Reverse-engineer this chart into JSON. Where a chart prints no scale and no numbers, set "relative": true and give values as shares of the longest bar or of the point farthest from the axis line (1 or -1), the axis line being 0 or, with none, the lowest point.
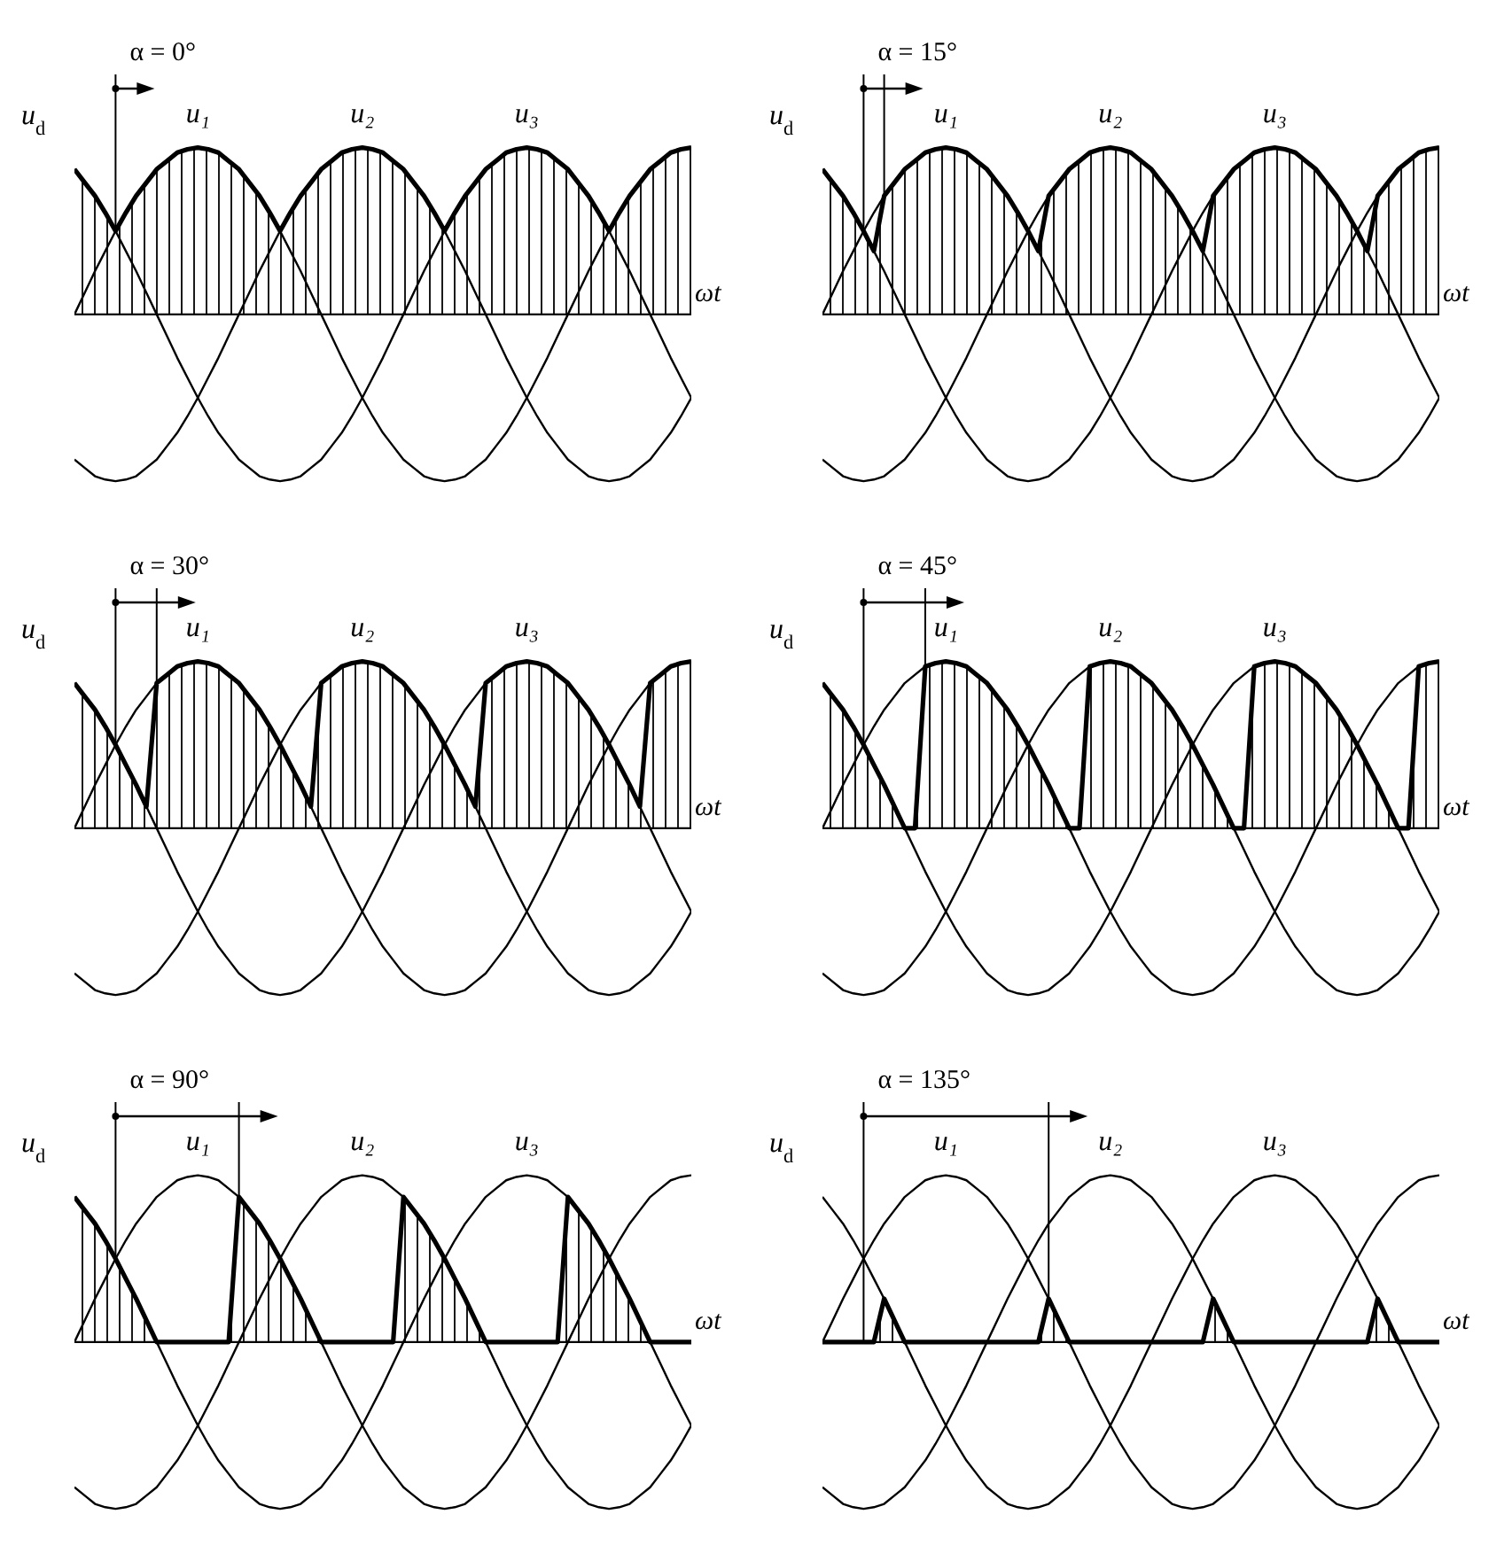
{
  "chart_data": [
    {
      "type": "line",
      "title": "α = 0°",
      "xlabel": "ωt",
      "ylabel": "u$_{d}$",
      "relative": true,
      "annotations": [
        "u₁",
        "u₂",
        "u₃"
      ],
      "categories": [
        null,
        null,
        null,
        null,
        null,
        null,
        null,
        null,
        null,
        null,
        null,
        null,
        null,
        null,
        null,
        null,
        null,
        null,
        null,
        null,
        null,
        null,
        null,
        null,
        null,
        null,
        null,
        null,
        null,
        null,
        null,
        null,
        null,
        null,
        null,
        null,
        null,
        null,
        null,
        null,
        null,
        null,
        null,
        null,
        null,
        null,
        null,
        null,
        null,
        null,
        null,
        null,
        null,
        null,
        null,
        null,
        null,
        null,
        null,
        null,
        null
      ],
      "series": [
        {
          "type": "line",
          "color": "#000000",
          "values": [
            0,
            0.13,
            0.26,
            0.38,
            0.5,
            0.61,
            0.71,
            0.79,
            0.87,
            0.92,
            0.97,
            0.99,
            1,
            0.99,
            0.97,
            0.92,
            0.87,
            0.79,
            0.71,
            0.61,
            0.5,
            0.38,
            0.26,
            0.13,
            0,
            -0.13,
            -0.26,
            -0.38,
            -0.5,
            -0.61,
            -0.71,
            -0.79,
            -0.87,
            -0.92,
            -0.97,
            -0.99,
            -1,
            -0.99,
            -0.97,
            -0.92,
            -0.87,
            -0.79,
            -0.71,
            -0.61,
            -0.5,
            -0.38,
            -0.26,
            -0.13,
            0,
            0.13,
            0.26,
            0.38,
            0.5,
            0.61,
            0.71,
            0.79,
            0.87,
            0.92,
            0.97,
            0.99,
            1
          ]
        },
        {
          "type": "line",
          "color": "#000000",
          "values": [
            -0.87,
            -0.92,
            -0.97,
            -0.99,
            -1,
            -0.99,
            -0.97,
            -0.92,
            -0.87,
            -0.79,
            -0.71,
            -0.61,
            -0.5,
            -0.38,
            -0.26,
            -0.13,
            0,
            0.13,
            0.26,
            0.38,
            0.5,
            0.61,
            0.71,
            0.79,
            0.87,
            0.92,
            0.97,
            0.99,
            1,
            0.99,
            0.97,
            0.92,
            0.87,
            0.79,
            0.71,
            0.61,
            0.5,
            0.38,
            0.26,
            0.13,
            0,
            -0.13,
            -0.26,
            -0.38,
            -0.5,
            -0.61,
            -0.71,
            -0.79,
            -0.87,
            -0.92,
            -0.97,
            -0.99,
            -1,
            -0.99,
            -0.97,
            -0.92,
            -0.87,
            -0.79,
            -0.71,
            -0.61,
            -0.5
          ]
        },
        {
          "type": "line",
          "color": "#000000",
          "values": [
            0.87,
            0.79,
            0.71,
            0.61,
            0.5,
            0.38,
            0.26,
            0.13,
            0,
            -0.13,
            -0.26,
            -0.38,
            -0.5,
            -0.61,
            -0.71,
            -0.79,
            -0.87,
            -0.92,
            -0.97,
            -0.99,
            -1,
            -0.99,
            -0.97,
            -0.92,
            -0.87,
            -0.79,
            -0.71,
            -0.61,
            -0.5,
            -0.38,
            -0.26,
            -0.13,
            0,
            0.13,
            0.26,
            0.38,
            0.5,
            0.61,
            0.71,
            0.79,
            0.87,
            0.92,
            0.97,
            0.99,
            1,
            0.99,
            0.97,
            0.92,
            0.87,
            0.79,
            0.71,
            0.61,
            0.5,
            0.38,
            0.26,
            0.13,
            0,
            -0.13,
            -0.26,
            -0.38,
            -0.5
          ]
        },
        {
          "type": "area",
          "color": "#000000",
          "values": [
            0.87,
            0.79,
            0.71,
            0.61,
            0.5,
            0.61,
            0.71,
            0.79,
            0.87,
            0.92,
            0.97,
            0.99,
            1,
            0.99,
            0.97,
            0.92,
            0.87,
            0.79,
            0.71,
            0.61,
            0.5,
            0.61,
            0.71,
            0.79,
            0.87,
            0.92,
            0.97,
            0.99,
            1,
            0.99,
            0.97,
            0.92,
            0.87,
            0.79,
            0.71,
            0.61,
            0.5,
            0.61,
            0.71,
            0.79,
            0.87,
            0.92,
            0.97,
            0.99,
            1,
            0.99,
            0.97,
            0.92,
            0.87,
            0.79,
            0.71,
            0.61,
            0.5,
            0.61,
            0.71,
            0.79,
            0.87,
            0.92,
            0.97,
            0.99,
            1
          ]
        }
      ]
    },
    {
      "type": "line",
      "title": "α = 15°",
      "xlabel": "ωt",
      "ylabel": "u$_{d}$",
      "relative": true,
      "annotations": [
        "u₁",
        "u₂",
        "u₃"
      ],
      "categories": [
        null,
        null,
        null,
        null,
        null,
        null,
        null,
        null,
        null,
        null,
        null,
        null,
        null,
        null,
        null,
        null,
        null,
        null,
        null,
        null,
        null,
        null,
        null,
        null,
        null,
        null,
        null,
        null,
        null,
        null,
        null,
        null,
        null,
        null,
        null,
        null,
        null,
        null,
        null,
        null,
        null,
        null,
        null,
        null,
        null,
        null,
        null,
        null,
        null,
        null,
        null,
        null,
        null,
        null,
        null,
        null,
        null,
        null,
        null,
        null,
        null
      ],
      "series": [
        {
          "type": "line",
          "color": "#000000",
          "values": [
            0,
            0.13,
            0.26,
            0.38,
            0.5,
            0.61,
            0.71,
            0.79,
            0.87,
            0.92,
            0.97,
            0.99,
            1,
            0.99,
            0.97,
            0.92,
            0.87,
            0.79,
            0.71,
            0.61,
            0.5,
            0.38,
            0.26,
            0.13,
            0,
            -0.13,
            -0.26,
            -0.38,
            -0.5,
            -0.61,
            -0.71,
            -0.79,
            -0.87,
            -0.92,
            -0.97,
            -0.99,
            -1,
            -0.99,
            -0.97,
            -0.92,
            -0.87,
            -0.79,
            -0.71,
            -0.61,
            -0.5,
            -0.38,
            -0.26,
            -0.13,
            0,
            0.13,
            0.26,
            0.38,
            0.5,
            0.61,
            0.71,
            0.79,
            0.87,
            0.92,
            0.97,
            0.99,
            1
          ]
        },
        {
          "type": "line",
          "color": "#000000",
          "values": [
            -0.87,
            -0.92,
            -0.97,
            -0.99,
            -1,
            -0.99,
            -0.97,
            -0.92,
            -0.87,
            -0.79,
            -0.71,
            -0.61,
            -0.5,
            -0.38,
            -0.26,
            -0.13,
            0,
            0.13,
            0.26,
            0.38,
            0.5,
            0.61,
            0.71,
            0.79,
            0.87,
            0.92,
            0.97,
            0.99,
            1,
            0.99,
            0.97,
            0.92,
            0.87,
            0.79,
            0.71,
            0.61,
            0.5,
            0.38,
            0.26,
            0.13,
            0,
            -0.13,
            -0.26,
            -0.38,
            -0.5,
            -0.61,
            -0.71,
            -0.79,
            -0.87,
            -0.92,
            -0.97,
            -0.99,
            -1,
            -0.99,
            -0.97,
            -0.92,
            -0.87,
            -0.79,
            -0.71,
            -0.61,
            -0.5
          ]
        },
        {
          "type": "line",
          "color": "#000000",
          "values": [
            0.87,
            0.79,
            0.71,
            0.61,
            0.5,
            0.38,
            0.26,
            0.13,
            0,
            -0.13,
            -0.26,
            -0.38,
            -0.5,
            -0.61,
            -0.71,
            -0.79,
            -0.87,
            -0.92,
            -0.97,
            -0.99,
            -1,
            -0.99,
            -0.97,
            -0.92,
            -0.87,
            -0.79,
            -0.71,
            -0.61,
            -0.5,
            -0.38,
            -0.26,
            -0.13,
            0,
            0.13,
            0.26,
            0.38,
            0.5,
            0.61,
            0.71,
            0.79,
            0.87,
            0.92,
            0.97,
            0.99,
            1,
            0.99,
            0.97,
            0.92,
            0.87,
            0.79,
            0.71,
            0.61,
            0.5,
            0.38,
            0.26,
            0.13,
            0,
            -0.13,
            -0.26,
            -0.38,
            -0.5
          ]
        },
        {
          "type": "area",
          "color": "#000000",
          "values": [
            0.87,
            0.79,
            0.71,
            0.61,
            0.5,
            0.38,
            0.71,
            0.79,
            0.87,
            0.92,
            0.97,
            0.99,
            1,
            0.99,
            0.97,
            0.92,
            0.87,
            0.79,
            0.71,
            0.61,
            0.5,
            0.38,
            0.71,
            0.79,
            0.87,
            0.92,
            0.97,
            0.99,
            1,
            0.99,
            0.97,
            0.92,
            0.87,
            0.79,
            0.71,
            0.61,
            0.5,
            0.38,
            0.71,
            0.79,
            0.87,
            0.92,
            0.97,
            0.99,
            1,
            0.99,
            0.97,
            0.92,
            0.87,
            0.79,
            0.71,
            0.61,
            0.5,
            0.38,
            0.71,
            0.79,
            0.87,
            0.92,
            0.97,
            0.99,
            1
          ]
        }
      ]
    },
    {
      "type": "line",
      "title": "α = 30°",
      "xlabel": "ωt",
      "ylabel": "u$_{d}$",
      "relative": true,
      "annotations": [
        "u₁",
        "u₂",
        "u₃"
      ],
      "categories": [
        null,
        null,
        null,
        null,
        null,
        null,
        null,
        null,
        null,
        null,
        null,
        null,
        null,
        null,
        null,
        null,
        null,
        null,
        null,
        null,
        null,
        null,
        null,
        null,
        null,
        null,
        null,
        null,
        null,
        null,
        null,
        null,
        null,
        null,
        null,
        null,
        null,
        null,
        null,
        null,
        null,
        null,
        null,
        null,
        null,
        null,
        null,
        null,
        null,
        null,
        null,
        null,
        null,
        null,
        null,
        null,
        null,
        null,
        null,
        null,
        null
      ],
      "series": [
        {
          "type": "line",
          "color": "#000000",
          "values": [
            0,
            0.13,
            0.26,
            0.38,
            0.5,
            0.61,
            0.71,
            0.79,
            0.87,
            0.92,
            0.97,
            0.99,
            1,
            0.99,
            0.97,
            0.92,
            0.87,
            0.79,
            0.71,
            0.61,
            0.5,
            0.38,
            0.26,
            0.13,
            0,
            -0.13,
            -0.26,
            -0.38,
            -0.5,
            -0.61,
            -0.71,
            -0.79,
            -0.87,
            -0.92,
            -0.97,
            -0.99,
            -1,
            -0.99,
            -0.97,
            -0.92,
            -0.87,
            -0.79,
            -0.71,
            -0.61,
            -0.5,
            -0.38,
            -0.26,
            -0.13,
            0,
            0.13,
            0.26,
            0.38,
            0.5,
            0.61,
            0.71,
            0.79,
            0.87,
            0.92,
            0.97,
            0.99,
            1
          ]
        },
        {
          "type": "line",
          "color": "#000000",
          "values": [
            -0.87,
            -0.92,
            -0.97,
            -0.99,
            -1,
            -0.99,
            -0.97,
            -0.92,
            -0.87,
            -0.79,
            -0.71,
            -0.61,
            -0.5,
            -0.38,
            -0.26,
            -0.13,
            0,
            0.13,
            0.26,
            0.38,
            0.5,
            0.61,
            0.71,
            0.79,
            0.87,
            0.92,
            0.97,
            0.99,
            1,
            0.99,
            0.97,
            0.92,
            0.87,
            0.79,
            0.71,
            0.61,
            0.5,
            0.38,
            0.26,
            0.13,
            0,
            -0.13,
            -0.26,
            -0.38,
            -0.5,
            -0.61,
            -0.71,
            -0.79,
            -0.87,
            -0.92,
            -0.97,
            -0.99,
            -1,
            -0.99,
            -0.97,
            -0.92,
            -0.87,
            -0.79,
            -0.71,
            -0.61,
            -0.5
          ]
        },
        {
          "type": "line",
          "color": "#000000",
          "values": [
            0.87,
            0.79,
            0.71,
            0.61,
            0.5,
            0.38,
            0.26,
            0.13,
            0,
            -0.13,
            -0.26,
            -0.38,
            -0.5,
            -0.61,
            -0.71,
            -0.79,
            -0.87,
            -0.92,
            -0.97,
            -0.99,
            -1,
            -0.99,
            -0.97,
            -0.92,
            -0.87,
            -0.79,
            -0.71,
            -0.61,
            -0.5,
            -0.38,
            -0.26,
            -0.13,
            0,
            0.13,
            0.26,
            0.38,
            0.5,
            0.61,
            0.71,
            0.79,
            0.87,
            0.92,
            0.97,
            0.99,
            1,
            0.99,
            0.97,
            0.92,
            0.87,
            0.79,
            0.71,
            0.61,
            0.5,
            0.38,
            0.26,
            0.13,
            0,
            -0.13,
            -0.26,
            -0.38,
            -0.5
          ]
        },
        {
          "type": "area",
          "color": "#000000",
          "values": [
            0.87,
            0.79,
            0.71,
            0.61,
            0.5,
            0.38,
            0.26,
            0.13,
            0.87,
            0.92,
            0.97,
            0.99,
            1,
            0.99,
            0.97,
            0.92,
            0.87,
            0.79,
            0.71,
            0.61,
            0.5,
            0.38,
            0.26,
            0.13,
            0.87,
            0.92,
            0.97,
            0.99,
            1,
            0.99,
            0.97,
            0.92,
            0.87,
            0.79,
            0.71,
            0.61,
            0.5,
            0.38,
            0.26,
            0.13,
            0.87,
            0.92,
            0.97,
            0.99,
            1,
            0.99,
            0.97,
            0.92,
            0.87,
            0.79,
            0.71,
            0.61,
            0.5,
            0.38,
            0.26,
            0.13,
            0.87,
            0.92,
            0.97,
            0.99,
            1
          ]
        }
      ]
    },
    {
      "type": "line",
      "title": "α = 45°",
      "xlabel": "ωt",
      "ylabel": "u$_{d}$",
      "relative": true,
      "annotations": [
        "u₁",
        "u₂",
        "u₃"
      ],
      "categories": [
        null,
        null,
        null,
        null,
        null,
        null,
        null,
        null,
        null,
        null,
        null,
        null,
        null,
        null,
        null,
        null,
        null,
        null,
        null,
        null,
        null,
        null,
        null,
        null,
        null,
        null,
        null,
        null,
        null,
        null,
        null,
        null,
        null,
        null,
        null,
        null,
        null,
        null,
        null,
        null,
        null,
        null,
        null,
        null,
        null,
        null,
        null,
        null,
        null,
        null,
        null,
        null,
        null,
        null,
        null,
        null,
        null,
        null,
        null,
        null,
        null
      ],
      "series": [
        {
          "type": "line",
          "color": "#000000",
          "values": [
            0,
            0.13,
            0.26,
            0.38,
            0.5,
            0.61,
            0.71,
            0.79,
            0.87,
            0.92,
            0.97,
            0.99,
            1,
            0.99,
            0.97,
            0.92,
            0.87,
            0.79,
            0.71,
            0.61,
            0.5,
            0.38,
            0.26,
            0.13,
            0,
            -0.13,
            -0.26,
            -0.38,
            -0.5,
            -0.61,
            -0.71,
            -0.79,
            -0.87,
            -0.92,
            -0.97,
            -0.99,
            -1,
            -0.99,
            -0.97,
            -0.92,
            -0.87,
            -0.79,
            -0.71,
            -0.61,
            -0.5,
            -0.38,
            -0.26,
            -0.13,
            0,
            0.13,
            0.26,
            0.38,
            0.5,
            0.61,
            0.71,
            0.79,
            0.87,
            0.92,
            0.97,
            0.99,
            1
          ]
        },
        {
          "type": "line",
          "color": "#000000",
          "values": [
            -0.87,
            -0.92,
            -0.97,
            -0.99,
            -1,
            -0.99,
            -0.97,
            -0.92,
            -0.87,
            -0.79,
            -0.71,
            -0.61,
            -0.5,
            -0.38,
            -0.26,
            -0.13,
            0,
            0.13,
            0.26,
            0.38,
            0.5,
            0.61,
            0.71,
            0.79,
            0.87,
            0.92,
            0.97,
            0.99,
            1,
            0.99,
            0.97,
            0.92,
            0.87,
            0.79,
            0.71,
            0.61,
            0.5,
            0.38,
            0.26,
            0.13,
            0,
            -0.13,
            -0.26,
            -0.38,
            -0.5,
            -0.61,
            -0.71,
            -0.79,
            -0.87,
            -0.92,
            -0.97,
            -0.99,
            -1,
            -0.99,
            -0.97,
            -0.92,
            -0.87,
            -0.79,
            -0.71,
            -0.61,
            -0.5
          ]
        },
        {
          "type": "line",
          "color": "#000000",
          "values": [
            0.87,
            0.79,
            0.71,
            0.61,
            0.5,
            0.38,
            0.26,
            0.13,
            0,
            -0.13,
            -0.26,
            -0.38,
            -0.5,
            -0.61,
            -0.71,
            -0.79,
            -0.87,
            -0.92,
            -0.97,
            -0.99,
            -1,
            -0.99,
            -0.97,
            -0.92,
            -0.87,
            -0.79,
            -0.71,
            -0.61,
            -0.5,
            -0.38,
            -0.26,
            -0.13,
            0,
            0.13,
            0.26,
            0.38,
            0.5,
            0.61,
            0.71,
            0.79,
            0.87,
            0.92,
            0.97,
            0.99,
            1,
            0.99,
            0.97,
            0.92,
            0.87,
            0.79,
            0.71,
            0.61,
            0.5,
            0.38,
            0.26,
            0.13,
            0,
            -0.13,
            -0.26,
            -0.38,
            -0.5
          ]
        },
        {
          "type": "area",
          "color": "#000000",
          "values": [
            0.87,
            0.79,
            0.71,
            0.61,
            0.5,
            0.38,
            0.26,
            0.13,
            0,
            0,
            0.97,
            0.99,
            1,
            0.99,
            0.97,
            0.92,
            0.87,
            0.79,
            0.71,
            0.61,
            0.5,
            0.38,
            0.26,
            0.13,
            0,
            0,
            0.97,
            0.99,
            1,
            0.99,
            0.97,
            0.92,
            0.87,
            0.79,
            0.71,
            0.61,
            0.5,
            0.38,
            0.26,
            0.13,
            0,
            0,
            0.97,
            0.99,
            1,
            0.99,
            0.97,
            0.92,
            0.87,
            0.79,
            0.71,
            0.61,
            0.5,
            0.38,
            0.26,
            0.13,
            0,
            0,
            0.97,
            0.99,
            1
          ]
        }
      ]
    },
    {
      "type": "line",
      "title": "α = 90°",
      "xlabel": "ωt",
      "ylabel": "u$_{d}$",
      "relative": true,
      "annotations": [
        "u₁",
        "u₂",
        "u₃"
      ],
      "categories": [
        null,
        null,
        null,
        null,
        null,
        null,
        null,
        null,
        null,
        null,
        null,
        null,
        null,
        null,
        null,
        null,
        null,
        null,
        null,
        null,
        null,
        null,
        null,
        null,
        null,
        null,
        null,
        null,
        null,
        null,
        null,
        null,
        null,
        null,
        null,
        null,
        null,
        null,
        null,
        null,
        null,
        null,
        null,
        null,
        null,
        null,
        null,
        null,
        null,
        null,
        null,
        null,
        null,
        null,
        null,
        null,
        null,
        null,
        null,
        null,
        null
      ],
      "series": [
        {
          "type": "line",
          "color": "#000000",
          "values": [
            0,
            0.13,
            0.26,
            0.38,
            0.5,
            0.61,
            0.71,
            0.79,
            0.87,
            0.92,
            0.97,
            0.99,
            1,
            0.99,
            0.97,
            0.92,
            0.87,
            0.79,
            0.71,
            0.61,
            0.5,
            0.38,
            0.26,
            0.13,
            0,
            -0.13,
            -0.26,
            -0.38,
            -0.5,
            -0.61,
            -0.71,
            -0.79,
            -0.87,
            -0.92,
            -0.97,
            -0.99,
            -1,
            -0.99,
            -0.97,
            -0.92,
            -0.87,
            -0.79,
            -0.71,
            -0.61,
            -0.5,
            -0.38,
            -0.26,
            -0.13,
            0,
            0.13,
            0.26,
            0.38,
            0.5,
            0.61,
            0.71,
            0.79,
            0.87,
            0.92,
            0.97,
            0.99,
            1
          ]
        },
        {
          "type": "line",
          "color": "#000000",
          "values": [
            -0.87,
            -0.92,
            -0.97,
            -0.99,
            -1,
            -0.99,
            -0.97,
            -0.92,
            -0.87,
            -0.79,
            -0.71,
            -0.61,
            -0.5,
            -0.38,
            -0.26,
            -0.13,
            0,
            0.13,
            0.26,
            0.38,
            0.5,
            0.61,
            0.71,
            0.79,
            0.87,
            0.92,
            0.97,
            0.99,
            1,
            0.99,
            0.97,
            0.92,
            0.87,
            0.79,
            0.71,
            0.61,
            0.5,
            0.38,
            0.26,
            0.13,
            0,
            -0.13,
            -0.26,
            -0.38,
            -0.5,
            -0.61,
            -0.71,
            -0.79,
            -0.87,
            -0.92,
            -0.97,
            -0.99,
            -1,
            -0.99,
            -0.97,
            -0.92,
            -0.87,
            -0.79,
            -0.71,
            -0.61,
            -0.5
          ]
        },
        {
          "type": "line",
          "color": "#000000",
          "values": [
            0.87,
            0.79,
            0.71,
            0.61,
            0.5,
            0.38,
            0.26,
            0.13,
            0,
            -0.13,
            -0.26,
            -0.38,
            -0.5,
            -0.61,
            -0.71,
            -0.79,
            -0.87,
            -0.92,
            -0.97,
            -0.99,
            -1,
            -0.99,
            -0.97,
            -0.92,
            -0.87,
            -0.79,
            -0.71,
            -0.61,
            -0.5,
            -0.38,
            -0.26,
            -0.13,
            0,
            0.13,
            0.26,
            0.38,
            0.5,
            0.61,
            0.71,
            0.79,
            0.87,
            0.92,
            0.97,
            0.99,
            1,
            0.99,
            0.97,
            0.92,
            0.87,
            0.79,
            0.71,
            0.61,
            0.5,
            0.38,
            0.26,
            0.13,
            0,
            -0.13,
            -0.26,
            -0.38,
            -0.5
          ]
        },
        {
          "type": "area",
          "color": "#000000",
          "values": [
            0.87,
            0.79,
            0.71,
            0.61,
            0.5,
            0.38,
            0.26,
            0.13,
            0,
            0,
            0,
            0,
            0,
            0,
            0,
            0,
            0.87,
            0.79,
            0.71,
            0.61,
            0.5,
            0.38,
            0.26,
            0.13,
            0,
            0,
            0,
            0,
            0,
            0,
            0,
            0,
            0.87,
            0.79,
            0.71,
            0.61,
            0.5,
            0.38,
            0.26,
            0.13,
            0,
            0,
            0,
            0,
            0,
            0,
            0,
            0,
            0.87,
            0.79,
            0.71,
            0.61,
            0.5,
            0.38,
            0.26,
            0.13,
            0,
            0,
            0,
            0,
            0
          ]
        }
      ]
    },
    {
      "type": "line",
      "title": "α = 135°",
      "xlabel": "ωt",
      "ylabel": "u$_{d}$",
      "relative": true,
      "annotations": [
        "u₁",
        "u₂",
        "u₃"
      ],
      "categories": [
        null,
        null,
        null,
        null,
        null,
        null,
        null,
        null,
        null,
        null,
        null,
        null,
        null,
        null,
        null,
        null,
        null,
        null,
        null,
        null,
        null,
        null,
        null,
        null,
        null,
        null,
        null,
        null,
        null,
        null,
        null,
        null,
        null,
        null,
        null,
        null,
        null,
        null,
        null,
        null,
        null,
        null,
        null,
        null,
        null,
        null,
        null,
        null,
        null,
        null,
        null,
        null,
        null,
        null,
        null,
        null,
        null,
        null,
        null,
        null,
        null
      ],
      "series": [
        {
          "type": "line",
          "color": "#000000",
          "values": [
            0,
            0.13,
            0.26,
            0.38,
            0.5,
            0.61,
            0.71,
            0.79,
            0.87,
            0.92,
            0.97,
            0.99,
            1,
            0.99,
            0.97,
            0.92,
            0.87,
            0.79,
            0.71,
            0.61,
            0.5,
            0.38,
            0.26,
            0.13,
            0,
            -0.13,
            -0.26,
            -0.38,
            -0.5,
            -0.61,
            -0.71,
            -0.79,
            -0.87,
            -0.92,
            -0.97,
            -0.99,
            -1,
            -0.99,
            -0.97,
            -0.92,
            -0.87,
            -0.79,
            -0.71,
            -0.61,
            -0.5,
            -0.38,
            -0.26,
            -0.13,
            0,
            0.13,
            0.26,
            0.38,
            0.5,
            0.61,
            0.71,
            0.79,
            0.87,
            0.92,
            0.97,
            0.99,
            1
          ]
        },
        {
          "type": "line",
          "color": "#000000",
          "values": [
            -0.87,
            -0.92,
            -0.97,
            -0.99,
            -1,
            -0.99,
            -0.97,
            -0.92,
            -0.87,
            -0.79,
            -0.71,
            -0.61,
            -0.5,
            -0.38,
            -0.26,
            -0.13,
            0,
            0.13,
            0.26,
            0.38,
            0.5,
            0.61,
            0.71,
            0.79,
            0.87,
            0.92,
            0.97,
            0.99,
            1,
            0.99,
            0.97,
            0.92,
            0.87,
            0.79,
            0.71,
            0.61,
            0.5,
            0.38,
            0.26,
            0.13,
            0,
            -0.13,
            -0.26,
            -0.38,
            -0.5,
            -0.61,
            -0.71,
            -0.79,
            -0.87,
            -0.92,
            -0.97,
            -0.99,
            -1,
            -0.99,
            -0.97,
            -0.92,
            -0.87,
            -0.79,
            -0.71,
            -0.61,
            -0.5
          ]
        },
        {
          "type": "line",
          "color": "#000000",
          "values": [
            0.87,
            0.79,
            0.71,
            0.61,
            0.5,
            0.38,
            0.26,
            0.13,
            0,
            -0.13,
            -0.26,
            -0.38,
            -0.5,
            -0.61,
            -0.71,
            -0.79,
            -0.87,
            -0.92,
            -0.97,
            -0.99,
            -1,
            -0.99,
            -0.97,
            -0.92,
            -0.87,
            -0.79,
            -0.71,
            -0.61,
            -0.5,
            -0.38,
            -0.26,
            -0.13,
            0,
            0.13,
            0.26,
            0.38,
            0.5,
            0.61,
            0.71,
            0.79,
            0.87,
            0.92,
            0.97,
            0.99,
            1,
            0.99,
            0.97,
            0.92,
            0.87,
            0.79,
            0.71,
            0.61,
            0.5,
            0.38,
            0.26,
            0.13,
            0,
            -0.13,
            -0.26,
            -0.38,
            -0.5
          ]
        },
        {
          "type": "area",
          "color": "#000000",
          "values": [
            0,
            0,
            0,
            0,
            0,
            0,
            0.26,
            0.13,
            0,
            0,
            0,
            0,
            0,
            0,
            0,
            0,
            0,
            0,
            0,
            0,
            0,
            0,
            0.26,
            0.13,
            0,
            0,
            0,
            0,
            0,
            0,
            0,
            0,
            0,
            0,
            0,
            0,
            0,
            0,
            0.26,
            0.13,
            0,
            0,
            0,
            0,
            0,
            0,
            0,
            0,
            0,
            0,
            0,
            0,
            0,
            0,
            0.26,
            0.13,
            0,
            0,
            0,
            0,
            0
          ]
        }
      ]
    }
  ]
}
